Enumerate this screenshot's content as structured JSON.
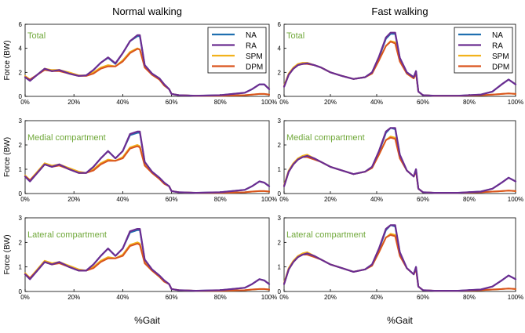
{
  "figure": {
    "column_titles": [
      "Normal walking",
      "Fast walking"
    ],
    "ylabel": "Force (BW)",
    "xlabel": "%Gait",
    "xticks": [
      "0%",
      "20%",
      "40%",
      "60%",
      "80%",
      "100%"
    ],
    "legend": [
      {
        "name": "NA",
        "color": "#1f6fb0"
      },
      {
        "name": "RA",
        "color": "#6b2d91"
      },
      {
        "name": "SPM",
        "color": "#f2b21c"
      },
      {
        "name": "DPM",
        "color": "#d9541e"
      }
    ],
    "label_color": "#70a83a"
  },
  "chart_data": [
    {
      "type": "line",
      "title": "Normal walking",
      "subtitle": "Total",
      "xlabel": "%Gait",
      "ylabel": "Force (BW)",
      "xlim": [
        0,
        100
      ],
      "ylim": [
        0,
        6
      ],
      "yticks": [
        0,
        2,
        4,
        6
      ],
      "legend": "top-right",
      "x": [
        0,
        2,
        5,
        8,
        11,
        14,
        18,
        22,
        25,
        28,
        31,
        34,
        37,
        40,
        43,
        46,
        47,
        49,
        52,
        55,
        57,
        59,
        60,
        63,
        70,
        80,
        90,
        93,
        96,
        98,
        100
      ],
      "series": [
        {
          "name": "NA",
          "values": [
            1.6,
            1.3,
            1.8,
            2.3,
            2.1,
            2.2,
            1.9,
            1.7,
            1.75,
            2.2,
            2.8,
            3.2,
            2.7,
            3.6,
            4.6,
            5.0,
            5.0,
            2.6,
            1.9,
            1.5,
            1.0,
            0.6,
            0.2,
            0.1,
            0.05,
            0.1,
            0.3,
            0.6,
            1.0,
            1.0,
            0.6
          ]
        },
        {
          "name": "RA",
          "values": [
            1.6,
            1.3,
            1.8,
            2.3,
            2.1,
            2.2,
            1.9,
            1.7,
            1.75,
            2.2,
            2.8,
            3.25,
            2.75,
            3.6,
            4.6,
            5.1,
            5.1,
            2.6,
            1.9,
            1.5,
            1.0,
            0.6,
            0.2,
            0.1,
            0.05,
            0.1,
            0.3,
            0.6,
            1.0,
            1.0,
            0.6
          ]
        },
        {
          "name": "SPM",
          "values": [
            1.7,
            1.4,
            1.8,
            2.3,
            2.2,
            2.2,
            2.0,
            1.75,
            1.75,
            2.0,
            2.4,
            2.6,
            2.5,
            3.0,
            3.7,
            4.0,
            3.9,
            2.5,
            1.8,
            1.4,
            0.9,
            0.6,
            0.2,
            0.1,
            0.05,
            0.05,
            0.1,
            0.15,
            0.2,
            0.2,
            0.15
          ]
        },
        {
          "name": "DPM",
          "values": [
            1.6,
            1.4,
            1.8,
            2.2,
            2.1,
            2.1,
            1.9,
            1.7,
            1.7,
            1.9,
            2.3,
            2.5,
            2.5,
            2.9,
            3.6,
            3.95,
            3.9,
            2.4,
            1.8,
            1.4,
            0.9,
            0.6,
            0.2,
            0.1,
            0.05,
            0.05,
            0.1,
            0.15,
            0.2,
            0.2,
            0.15
          ]
        }
      ]
    },
    {
      "type": "line",
      "title": "Fast walking",
      "subtitle": "Total",
      "xlabel": "%Gait",
      "ylabel": "Force (BW)",
      "xlim": [
        0,
        100
      ],
      "ylim": [
        0,
        6
      ],
      "yticks": [
        0,
        2,
        4,
        6
      ],
      "legend": "top-right",
      "x": [
        0,
        2,
        4,
        6,
        8,
        10,
        13,
        16,
        20,
        25,
        30,
        35,
        38,
        41,
        44,
        46,
        48,
        50,
        53,
        56,
        57,
        58,
        60,
        65,
        75,
        85,
        90,
        94,
        97,
        100
      ],
      "series": [
        {
          "name": "NA",
          "values": [
            0.8,
            1.8,
            2.3,
            2.6,
            2.7,
            2.75,
            2.6,
            2.4,
            2.0,
            1.7,
            1.45,
            1.6,
            2.0,
            3.2,
            4.8,
            5.2,
            5.2,
            3.2,
            2.0,
            1.6,
            2.1,
            0.4,
            0.1,
            0.05,
            0.05,
            0.15,
            0.4,
            1.0,
            1.4,
            1.0
          ]
        },
        {
          "name": "RA",
          "values": [
            0.8,
            1.8,
            2.3,
            2.6,
            2.7,
            2.75,
            2.6,
            2.4,
            2.0,
            1.7,
            1.45,
            1.6,
            2.0,
            3.3,
            4.9,
            5.3,
            5.3,
            3.2,
            2.0,
            1.6,
            2.1,
            0.4,
            0.1,
            0.05,
            0.05,
            0.15,
            0.4,
            1.0,
            1.4,
            1.0
          ]
        },
        {
          "name": "SPM",
          "values": [
            0.9,
            1.9,
            2.4,
            2.7,
            2.8,
            2.8,
            2.6,
            2.4,
            2.0,
            1.7,
            1.45,
            1.6,
            1.9,
            3.0,
            4.2,
            4.6,
            4.5,
            3.0,
            1.9,
            1.5,
            2.0,
            0.4,
            0.1,
            0.05,
            0.05,
            0.1,
            0.15,
            0.2,
            0.25,
            0.2
          ]
        },
        {
          "name": "DPM",
          "values": [
            0.8,
            1.8,
            2.3,
            2.6,
            2.7,
            2.7,
            2.6,
            2.4,
            2.0,
            1.7,
            1.45,
            1.6,
            1.9,
            3.0,
            4.2,
            4.55,
            4.4,
            2.9,
            1.9,
            1.5,
            1.9,
            0.4,
            0.1,
            0.05,
            0.05,
            0.1,
            0.15,
            0.2,
            0.25,
            0.2
          ]
        }
      ]
    },
    {
      "type": "line",
      "title": "Normal walking",
      "subtitle": "Medial compartment",
      "xlabel": "%Gait",
      "ylabel": "Force (BW)",
      "xlim": [
        0,
        100
      ],
      "ylim": [
        0,
        3
      ],
      "yticks": [
        0,
        1,
        2,
        3
      ],
      "x": [
        0,
        2,
        5,
        8,
        11,
        14,
        18,
        22,
        25,
        28,
        31,
        34,
        37,
        40,
        43,
        46,
        47,
        49,
        52,
        55,
        57,
        59,
        60,
        63,
        70,
        80,
        90,
        93,
        96,
        98,
        100
      ],
      "series": [
        {
          "name": "NA",
          "values": [
            0.7,
            0.5,
            0.85,
            1.2,
            1.1,
            1.2,
            1.0,
            0.85,
            0.85,
            1.1,
            1.45,
            1.75,
            1.45,
            1.75,
            2.4,
            2.5,
            2.5,
            1.3,
            0.9,
            0.65,
            0.45,
            0.3,
            0.1,
            0.05,
            0.03,
            0.05,
            0.15,
            0.3,
            0.5,
            0.45,
            0.3
          ]
        },
        {
          "name": "RA",
          "values": [
            0.7,
            0.5,
            0.85,
            1.2,
            1.1,
            1.2,
            1.0,
            0.85,
            0.85,
            1.1,
            1.45,
            1.75,
            1.45,
            1.75,
            2.45,
            2.55,
            2.55,
            1.3,
            0.9,
            0.65,
            0.45,
            0.3,
            0.1,
            0.05,
            0.03,
            0.05,
            0.15,
            0.3,
            0.5,
            0.45,
            0.3
          ]
        },
        {
          "name": "SPM",
          "values": [
            0.75,
            0.55,
            0.9,
            1.25,
            1.15,
            1.2,
            1.05,
            0.9,
            0.85,
            1.0,
            1.25,
            1.4,
            1.35,
            1.5,
            1.9,
            2.0,
            1.95,
            1.2,
            0.85,
            0.6,
            0.4,
            0.3,
            0.1,
            0.05,
            0.03,
            0.03,
            0.05,
            0.08,
            0.1,
            0.1,
            0.08
          ]
        },
        {
          "name": "DPM",
          "values": [
            0.7,
            0.55,
            0.85,
            1.2,
            1.1,
            1.15,
            1.0,
            0.85,
            0.85,
            0.95,
            1.2,
            1.35,
            1.35,
            1.45,
            1.85,
            1.95,
            1.9,
            1.15,
            0.85,
            0.6,
            0.4,
            0.3,
            0.1,
            0.05,
            0.03,
            0.03,
            0.05,
            0.08,
            0.1,
            0.1,
            0.08
          ]
        }
      ]
    },
    {
      "type": "line",
      "title": "Fast walking",
      "subtitle": "Medial compartment",
      "xlabel": "%Gait",
      "ylabel": "Force (BW)",
      "xlim": [
        0,
        100
      ],
      "ylim": [
        0,
        3
      ],
      "yticks": [
        0,
        1,
        2,
        3
      ],
      "x": [
        0,
        2,
        4,
        6,
        8,
        10,
        13,
        16,
        20,
        25,
        30,
        35,
        38,
        41,
        44,
        46,
        48,
        50,
        53,
        56,
        57,
        58,
        60,
        65,
        75,
        85,
        90,
        94,
        97,
        100
      ],
      "series": [
        {
          "name": "NA",
          "values": [
            0.3,
            0.9,
            1.2,
            1.4,
            1.5,
            1.55,
            1.45,
            1.3,
            1.1,
            0.95,
            0.8,
            0.9,
            1.1,
            1.7,
            2.5,
            2.7,
            2.65,
            1.6,
            0.95,
            0.7,
            1.0,
            0.2,
            0.05,
            0.03,
            0.03,
            0.08,
            0.2,
            0.45,
            0.65,
            0.5
          ]
        },
        {
          "name": "RA",
          "values": [
            0.3,
            0.9,
            1.2,
            1.4,
            1.5,
            1.55,
            1.45,
            1.3,
            1.1,
            0.95,
            0.8,
            0.9,
            1.1,
            1.75,
            2.55,
            2.7,
            2.7,
            1.6,
            0.95,
            0.7,
            1.0,
            0.2,
            0.05,
            0.03,
            0.03,
            0.08,
            0.2,
            0.45,
            0.65,
            0.5
          ]
        },
        {
          "name": "SPM",
          "values": [
            0.35,
            0.95,
            1.25,
            1.45,
            1.55,
            1.6,
            1.45,
            1.3,
            1.1,
            0.95,
            0.8,
            0.9,
            1.05,
            1.6,
            2.2,
            2.35,
            2.3,
            1.5,
            0.95,
            0.7,
            0.95,
            0.2,
            0.05,
            0.03,
            0.03,
            0.05,
            0.08,
            0.1,
            0.12,
            0.1
          ]
        },
        {
          "name": "DPM",
          "values": [
            0.3,
            0.9,
            1.2,
            1.4,
            1.5,
            1.5,
            1.4,
            1.3,
            1.1,
            0.95,
            0.8,
            0.9,
            1.05,
            1.6,
            2.2,
            2.3,
            2.25,
            1.45,
            0.95,
            0.7,
            0.9,
            0.2,
            0.05,
            0.03,
            0.03,
            0.05,
            0.08,
            0.1,
            0.12,
            0.1
          ]
        }
      ]
    },
    {
      "type": "line",
      "title": "Normal walking",
      "subtitle": "Lateral compartment",
      "xlabel": "%Gait",
      "ylabel": "Force (BW)",
      "xlim": [
        0,
        100
      ],
      "ylim": [
        0,
        3
      ],
      "yticks": [
        0,
        1,
        2,
        3
      ],
      "x": [
        0,
        2,
        5,
        8,
        11,
        14,
        18,
        22,
        25,
        28,
        31,
        34,
        37,
        40,
        43,
        46,
        47,
        49,
        52,
        55,
        57,
        59,
        60,
        63,
        70,
        80,
        90,
        93,
        96,
        98,
        100
      ],
      "series": [
        {
          "name": "NA",
          "values": [
            0.7,
            0.5,
            0.85,
            1.2,
            1.1,
            1.2,
            1.0,
            0.85,
            0.85,
            1.1,
            1.45,
            1.75,
            1.45,
            1.75,
            2.4,
            2.5,
            2.5,
            1.3,
            0.9,
            0.65,
            0.45,
            0.3,
            0.1,
            0.05,
            0.03,
            0.05,
            0.15,
            0.3,
            0.5,
            0.45,
            0.3
          ]
        },
        {
          "name": "RA",
          "values": [
            0.7,
            0.5,
            0.85,
            1.2,
            1.1,
            1.2,
            1.0,
            0.85,
            0.85,
            1.1,
            1.45,
            1.75,
            1.45,
            1.75,
            2.45,
            2.55,
            2.55,
            1.3,
            0.9,
            0.65,
            0.45,
            0.3,
            0.1,
            0.05,
            0.03,
            0.05,
            0.15,
            0.3,
            0.5,
            0.45,
            0.3
          ]
        },
        {
          "name": "SPM",
          "values": [
            0.75,
            0.55,
            0.9,
            1.25,
            1.15,
            1.2,
            1.05,
            0.9,
            0.85,
            1.0,
            1.25,
            1.4,
            1.35,
            1.5,
            1.9,
            2.0,
            1.95,
            1.2,
            0.85,
            0.6,
            0.4,
            0.3,
            0.1,
            0.05,
            0.03,
            0.03,
            0.05,
            0.08,
            0.1,
            0.1,
            0.08
          ]
        },
        {
          "name": "DPM",
          "values": [
            0.7,
            0.55,
            0.85,
            1.2,
            1.1,
            1.15,
            1.0,
            0.85,
            0.85,
            0.95,
            1.2,
            1.35,
            1.35,
            1.45,
            1.85,
            1.95,
            1.9,
            1.15,
            0.85,
            0.6,
            0.4,
            0.3,
            0.1,
            0.05,
            0.03,
            0.03,
            0.05,
            0.08,
            0.1,
            0.1,
            0.08
          ]
        }
      ]
    },
    {
      "type": "line",
      "title": "Fast walking",
      "subtitle": "Lateral compartment",
      "xlabel": "%Gait",
      "ylabel": "Force (BW)",
      "xlim": [
        0,
        100
      ],
      "ylim": [
        0,
        3
      ],
      "yticks": [
        0,
        1,
        2,
        3
      ],
      "x": [
        0,
        2,
        4,
        6,
        8,
        10,
        13,
        16,
        20,
        25,
        30,
        35,
        38,
        41,
        44,
        46,
        48,
        50,
        53,
        56,
        57,
        58,
        60,
        65,
        75,
        85,
        90,
        94,
        97,
        100
      ],
      "series": [
        {
          "name": "NA",
          "values": [
            0.3,
            0.9,
            1.2,
            1.4,
            1.5,
            1.55,
            1.45,
            1.3,
            1.1,
            0.95,
            0.8,
            0.9,
            1.1,
            1.7,
            2.5,
            2.7,
            2.65,
            1.6,
            0.95,
            0.7,
            1.0,
            0.2,
            0.05,
            0.03,
            0.03,
            0.08,
            0.2,
            0.45,
            0.65,
            0.5
          ]
        },
        {
          "name": "RA",
          "values": [
            0.3,
            0.9,
            1.2,
            1.4,
            1.5,
            1.55,
            1.45,
            1.3,
            1.1,
            0.95,
            0.8,
            0.9,
            1.1,
            1.75,
            2.55,
            2.7,
            2.7,
            1.6,
            0.95,
            0.7,
            1.0,
            0.2,
            0.05,
            0.03,
            0.03,
            0.08,
            0.2,
            0.45,
            0.65,
            0.5
          ]
        },
        {
          "name": "SPM",
          "values": [
            0.35,
            0.95,
            1.25,
            1.45,
            1.55,
            1.6,
            1.45,
            1.3,
            1.1,
            0.95,
            0.8,
            0.9,
            1.05,
            1.6,
            2.2,
            2.35,
            2.3,
            1.5,
            0.95,
            0.7,
            0.95,
            0.2,
            0.05,
            0.03,
            0.03,
            0.05,
            0.08,
            0.1,
            0.12,
            0.1
          ]
        },
        {
          "name": "DPM",
          "values": [
            0.3,
            0.9,
            1.2,
            1.4,
            1.5,
            1.5,
            1.4,
            1.3,
            1.1,
            0.95,
            0.8,
            0.9,
            1.05,
            1.6,
            2.2,
            2.3,
            2.25,
            1.45,
            0.95,
            0.7,
            0.9,
            0.2,
            0.05,
            0.03,
            0.03,
            0.05,
            0.08,
            0.1,
            0.12,
            0.1
          ]
        }
      ]
    }
  ]
}
